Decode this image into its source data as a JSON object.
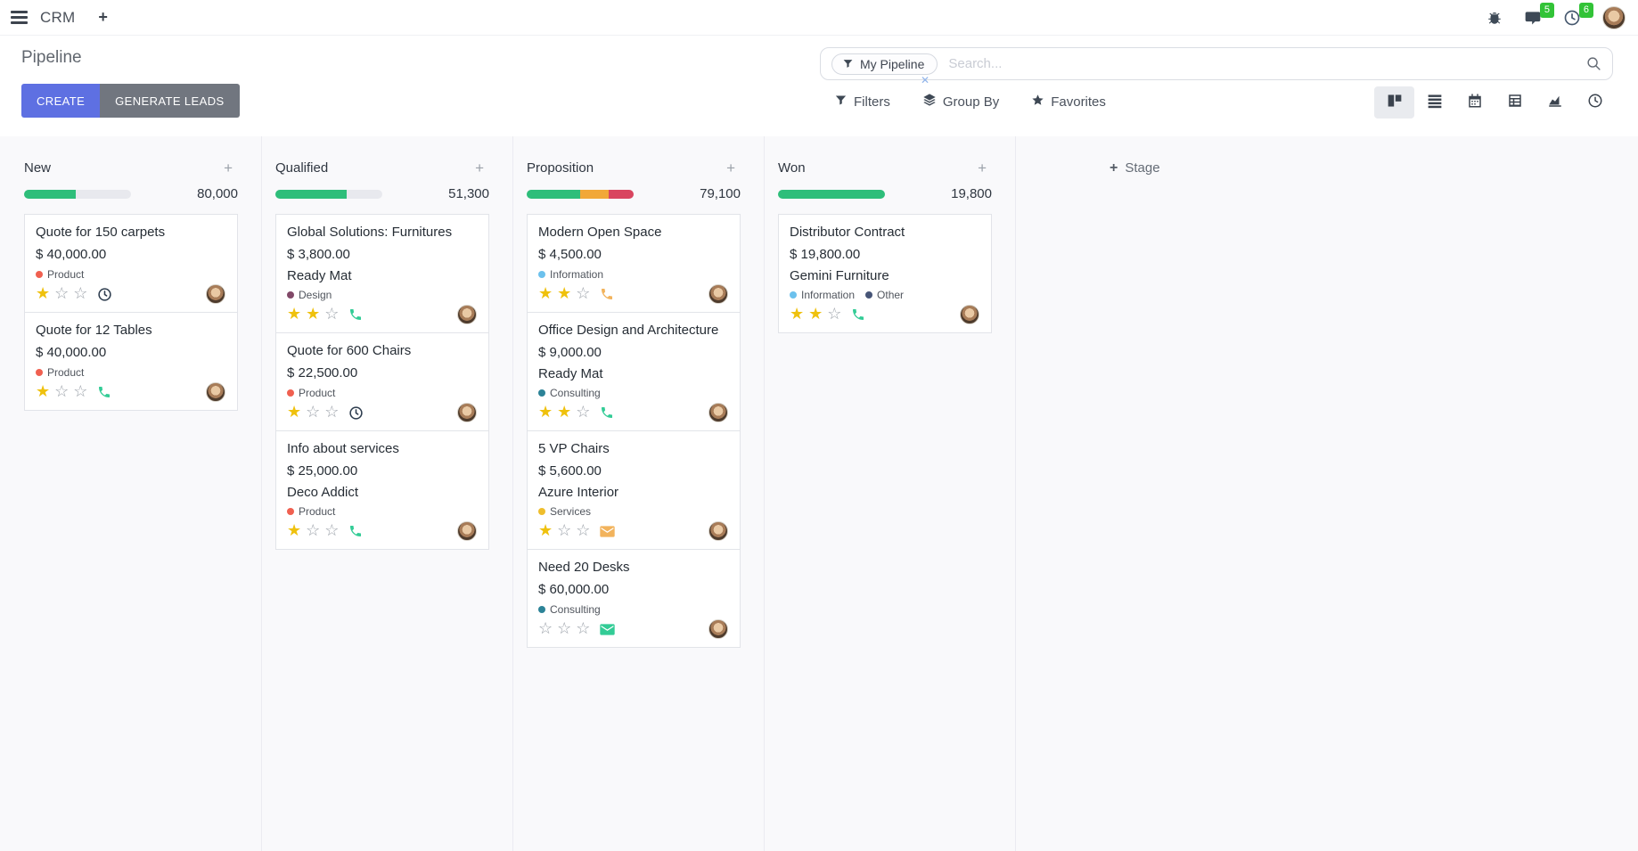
{
  "navbar": {
    "app_name": "CRM",
    "message_badge": "5",
    "activity_badge": "6"
  },
  "control_panel": {
    "title": "Pipeline",
    "create_label": "CREATE",
    "generate_label": "GENERATE LEADS",
    "search": {
      "facet": "My Pipeline",
      "placeholder": "Search..."
    },
    "menus": [
      {
        "id": "filters",
        "label": "Filters"
      },
      {
        "id": "groupby",
        "label": "Group By"
      },
      {
        "id": "favorites",
        "label": "Favorites"
      }
    ],
    "views": [
      {
        "id": "kanban",
        "active": true
      },
      {
        "id": "list",
        "active": false
      },
      {
        "id": "calendar",
        "active": false
      },
      {
        "id": "pivot",
        "active": false
      },
      {
        "id": "graph",
        "active": false
      },
      {
        "id": "activity",
        "active": false
      }
    ]
  },
  "colors": {
    "primary_button": "#5e70e2",
    "secondary_button": "#71767f",
    "badge_green": "#32c337",
    "progress_green": "#2ebe7a",
    "progress_orange": "#f1a838",
    "progress_red": "#d9455f",
    "star_gold": "#efc10d",
    "phone_green": "#33cc96",
    "phone_orange": "#f2b35c",
    "clock_dark": "#2c3b4d"
  },
  "kanban": {
    "add_stage_label": "Stage",
    "columns": [
      {
        "name": "New",
        "amount": "80,000",
        "progress": [
          {
            "color": "#2ebe7a",
            "pct": 48
          }
        ],
        "cards": [
          {
            "title": "Quote for 150 carpets",
            "amount": "$ 40,000.00",
            "partner": null,
            "tags": [
              {
                "label": "Product",
                "color": "#F06050"
              }
            ],
            "stars": 1,
            "icon": {
              "type": "clock",
              "color": "#2c3b4d"
            }
          },
          {
            "title": "Quote for 12 Tables",
            "amount": "$ 40,000.00",
            "partner": null,
            "tags": [
              {
                "label": "Product",
                "color": "#F06050"
              }
            ],
            "stars": 1,
            "icon": {
              "type": "phone",
              "color": "#33cc96"
            }
          }
        ]
      },
      {
        "name": "Qualified",
        "amount": "51,300",
        "progress": [
          {
            "color": "#2ebe7a",
            "pct": 67
          }
        ],
        "cards": [
          {
            "title": "Global Solutions: Furnitures",
            "amount": "$ 3,800.00",
            "partner": "Ready Mat",
            "tags": [
              {
                "label": "Design",
                "color": "#814968"
              }
            ],
            "stars": 2,
            "icon": {
              "type": "phone",
              "color": "#33cc96"
            }
          },
          {
            "title": "Quote for 600 Chairs",
            "amount": "$ 22,500.00",
            "partner": null,
            "tags": [
              {
                "label": "Product",
                "color": "#F06050"
              }
            ],
            "stars": 1,
            "icon": {
              "type": "clock",
              "color": "#2c3b4d"
            }
          },
          {
            "title": "Info about services",
            "amount": "$ 25,000.00",
            "partner": "Deco Addict",
            "tags": [
              {
                "label": "Product",
                "color": "#F06050"
              }
            ],
            "stars": 1,
            "icon": {
              "type": "phone",
              "color": "#33cc96"
            }
          }
        ]
      },
      {
        "name": "Proposition",
        "amount": "79,100",
        "progress": [
          {
            "color": "#2ebe7a",
            "pct": 50
          },
          {
            "color": "#f1a838",
            "pct": 27
          },
          {
            "color": "#d9455f",
            "pct": 23
          }
        ],
        "cards": [
          {
            "title": "Modern Open Space",
            "amount": "$ 4,500.00",
            "partner": null,
            "tags": [
              {
                "label": "Information",
                "color": "#6CC1ED"
              }
            ],
            "stars": 2,
            "icon": {
              "type": "phone",
              "color": "#f2b35c"
            }
          },
          {
            "title": "Office Design and Architecture",
            "amount": "$ 9,000.00",
            "partner": "Ready Mat",
            "tags": [
              {
                "label": "Consulting",
                "color": "#2C8397"
              }
            ],
            "stars": 2,
            "icon": {
              "type": "phone",
              "color": "#33cc96"
            }
          },
          {
            "title": "5 VP Chairs",
            "amount": "$ 5,600.00",
            "partner": "Azure Interior",
            "tags": [
              {
                "label": "Services",
                "color": "#efbe2c"
              }
            ],
            "stars": 1,
            "icon": {
              "type": "envelope",
              "color": "#f2b35c"
            }
          },
          {
            "title": "Need 20 Desks",
            "amount": "$ 60,000.00",
            "partner": null,
            "tags": [
              {
                "label": "Consulting",
                "color": "#2C8397"
              }
            ],
            "stars": 0,
            "icon": {
              "type": "envelope",
              "color": "#33cc96"
            }
          }
        ]
      },
      {
        "name": "Won",
        "amount": "19,800",
        "progress": [
          {
            "color": "#2ebe7a",
            "pct": 100
          }
        ],
        "cards": [
          {
            "title": "Distributor Contract",
            "amount": "$ 19,800.00",
            "partner": "Gemini Furniture",
            "tags": [
              {
                "label": "Information",
                "color": "#6CC1ED"
              },
              {
                "label": "Other",
                "color": "#475577"
              }
            ],
            "stars": 2,
            "icon": {
              "type": "phone",
              "color": "#33cc96"
            }
          }
        ]
      }
    ]
  }
}
